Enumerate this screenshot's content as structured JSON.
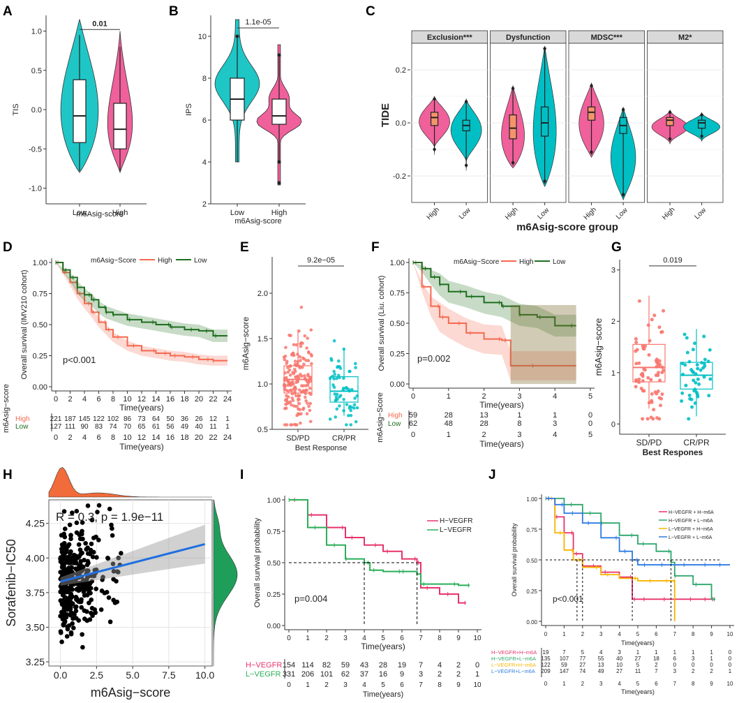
{
  "panels": {
    "A": {
      "letter": "A",
      "type": "violin",
      "ylabel": "TIS",
      "xlabel": "m6Asig-score",
      "categories": [
        "Low",
        "High"
      ],
      "yticks": [
        "1.0",
        "0.5",
        "0.0",
        "-0.5",
        "-1.0"
      ],
      "ylim": [
        -1.2,
        1.2
      ],
      "pvalue": "0.01",
      "groups": [
        {
          "name": "Low",
          "color": "#1FC6C6",
          "min": -0.78,
          "q1": -0.42,
          "median": -0.08,
          "q3": 0.38,
          "max": 0.95
        },
        {
          "name": "High",
          "color": "#F0609A",
          "min": -0.78,
          "q1": -0.5,
          "median": -0.25,
          "q3": 0.08,
          "max": 0.8
        }
      ]
    },
    "B": {
      "letter": "B",
      "type": "violin",
      "ylabel": "IPS",
      "xlabel": "m6Asig-score",
      "categories": [
        "Low",
        "High"
      ],
      "yticks": [
        "10",
        "8",
        "6",
        "4",
        "2"
      ],
      "ylim": [
        2,
        11
      ],
      "pvalue": "1.1e-05",
      "groups": [
        {
          "name": "Low",
          "color": "#1FC6C6",
          "min": 4,
          "q1": 6,
          "median": 7,
          "q3": 8,
          "max": 10
        },
        {
          "name": "High",
          "color": "#F0609A",
          "min": 4,
          "q1": 5.8,
          "median": 6.2,
          "q3": 7,
          "max": 9
        }
      ]
    },
    "C": {
      "letter": "C",
      "type": "violin-facet",
      "ylabel": "TIDE",
      "xlabel": "m6Asig-score group",
      "yticks": [
        "0.2",
        "0.0",
        "-0.2"
      ],
      "ylim": [
        -0.3,
        0.3
      ],
      "categories": [
        "High",
        "Low"
      ],
      "facets": [
        {
          "label": "Exclusion***",
          "high": {
            "median": 0.02,
            "q1": -0.01,
            "q3": 0.04
          },
          "low": {
            "median": -0.01,
            "q1": -0.03,
            "q3": 0.01
          }
        },
        {
          "label": "Dysfunction",
          "high": {
            "median": -0.02,
            "q1": -0.06,
            "q3": 0.03
          },
          "low": {
            "median": 0.0,
            "q1": -0.05,
            "q3": 0.06
          }
        },
        {
          "label": "MDSC***",
          "high": {
            "median": 0.04,
            "q1": 0.01,
            "q3": 0.06
          },
          "low": {
            "median": -0.01,
            "q1": -0.04,
            "q3": 0.02
          }
        },
        {
          "label": "M2*",
          "high": {
            "median": 0.01,
            "q1": -0.01,
            "q3": 0.02
          },
          "low": {
            "median": 0.0,
            "q1": -0.02,
            "q3": 0.01
          }
        }
      ]
    },
    "D": {
      "letter": "D",
      "type": "km",
      "ylabel": "Overall survival (IMV210 cohort)",
      "xlabel": "Time(years)",
      "legend_title": "m6Asig−Score",
      "legend": [
        "High",
        "Low"
      ],
      "pvalue": "p<0.001",
      "xticks": [
        "0",
        "2",
        "4",
        "6",
        "8",
        "10",
        "12",
        "14",
        "16",
        "18",
        "20",
        "22",
        "24"
      ],
      "yticks": [
        "1.00",
        "0.75",
        "0.50",
        "0.25",
        "0.00"
      ],
      "risk_title": "m6Asig−score",
      "risk_labels": [
        "High",
        "Low"
      ],
      "risk_high": [
        "221",
        "187",
        "145",
        "122",
        "102",
        "86",
        "73",
        "64",
        "50",
        "36",
        "26",
        "12",
        "1"
      ],
      "risk_low": [
        "127",
        "111",
        "90",
        "83",
        "74",
        "70",
        "65",
        "61",
        "56",
        "49",
        "40",
        "11",
        "1"
      ],
      "series": [
        {
          "name": "High",
          "x": [
            0,
            1,
            2,
            3,
            4,
            5,
            6,
            7,
            8,
            10,
            12,
            14,
            16,
            18,
            20,
            22,
            24
          ],
          "y": [
            1,
            0.92,
            0.84,
            0.75,
            0.67,
            0.6,
            0.52,
            0.46,
            0.4,
            0.33,
            0.29,
            0.27,
            0.25,
            0.24,
            0.22,
            0.21,
            0.21
          ]
        },
        {
          "name": "Low",
          "x": [
            0,
            1,
            2,
            3,
            4,
            5,
            6,
            7,
            8,
            10,
            12,
            14,
            16,
            18,
            20,
            22,
            24
          ],
          "y": [
            1,
            0.94,
            0.88,
            0.8,
            0.74,
            0.7,
            0.64,
            0.6,
            0.58,
            0.54,
            0.52,
            0.5,
            0.48,
            0.46,
            0.45,
            0.41,
            0.41
          ]
        }
      ]
    },
    "E": {
      "letter": "E",
      "type": "box",
      "ylabel": "m6Asig−score",
      "xlabel": "Best Response",
      "categories": [
        "SD/PD",
        "CR/PR"
      ],
      "yticks": [
        "2.0",
        "1.5",
        "1.0",
        "0.5"
      ],
      "ylim": [
        0.5,
        2.4
      ],
      "pvalue": "9.2e−05",
      "groups": [
        {
          "name": "SD/PD",
          "min": 0.72,
          "q1": 0.9,
          "median": 1.05,
          "q3": 1.2,
          "max": 1.6
        },
        {
          "name": "CR/PR",
          "min": 0.65,
          "q1": 0.8,
          "median": 0.92,
          "q3": 1.08,
          "max": 1.4
        }
      ]
    },
    "F": {
      "letter": "F",
      "type": "km",
      "ylabel": "Overall survival (Liu. cohort)",
      "xlabel": "Time(years)",
      "legend_title": "m6Asig−Score",
      "legend": [
        "High",
        "Low"
      ],
      "pvalue": "p=0.002",
      "xticks": [
        "0",
        "1",
        "2",
        "3",
        "4",
        "5"
      ],
      "yticks": [
        "1.00",
        "0.75",
        "0.50",
        "0.25",
        "0.00"
      ],
      "risk_title": "m6Asig−Score",
      "risk_labels": [
        "High",
        "Low"
      ],
      "risk_high": [
        "59",
        "28",
        "13",
        "1",
        "1",
        "0"
      ],
      "risk_low": [
        "62",
        "48",
        "28",
        "8",
        "3",
        "0"
      ],
      "series": [
        {
          "name": "High",
          "x": [
            0,
            0.25,
            0.5,
            0.75,
            1,
            1.5,
            2,
            2.5,
            2.75,
            4.6
          ],
          "y": [
            1,
            0.8,
            0.64,
            0.55,
            0.5,
            0.42,
            0.37,
            0.36,
            0.15,
            0.15
          ]
        },
        {
          "name": "Low",
          "x": [
            0,
            0.25,
            0.5,
            0.75,
            1,
            1.5,
            2,
            2.5,
            3,
            3.5,
            4,
            4.6
          ],
          "y": [
            1,
            0.95,
            0.88,
            0.82,
            0.76,
            0.72,
            0.67,
            0.64,
            0.57,
            0.55,
            0.48,
            0.48
          ]
        }
      ]
    },
    "G": {
      "letter": "G",
      "type": "box",
      "ylabel": "m6Asig−score",
      "xlabel": "Best Respones",
      "categories": [
        "SD/PD",
        "CR/PR"
      ],
      "yticks": [
        "3",
        "2",
        "1",
        "0"
      ],
      "ylim": [
        -0.2,
        3.2
      ],
      "pvalue": "0.019",
      "groups": [
        {
          "name": "SD/PD",
          "min": 0.3,
          "q1": 0.82,
          "median": 1.1,
          "q3": 1.55,
          "max": 2.5
        },
        {
          "name": "CR/PR",
          "min": 0.15,
          "q1": 0.68,
          "median": 0.95,
          "q3": 1.2,
          "max": 1.85
        }
      ]
    },
    "H": {
      "letter": "H",
      "type": "scatter",
      "ylabel": "Sorafenib−IC50",
      "xlabel": "m6Asig−score",
      "annotation": "R = 0.3, p = 1.9e−11",
      "xticks": [
        "0.0",
        "2.5",
        "5.0",
        "7.5",
        "10.0"
      ],
      "yticks": [
        "4.25",
        "4.00",
        "3.75",
        "3.50",
        "3.25"
      ],
      "xlim": [
        -0.8,
        10.5
      ],
      "ylim": [
        3.22,
        4.42
      ],
      "fit": {
        "x0": 0,
        "y0": 3.83,
        "x1": 10,
        "y1": 4.1
      }
    },
    "I": {
      "letter": "I",
      "type": "km",
      "ylabel": "Overall survival probability",
      "xlabel": "Time(years)",
      "legend": [
        "H−VEGFR",
        "L−VEGFR"
      ],
      "pvalue": "p=0.004",
      "xticks": [
        "0",
        "1",
        "2",
        "3",
        "4",
        "5",
        "6",
        "7",
        "8",
        "9",
        "10"
      ],
      "yticks": [
        "1.00",
        "0.75",
        "0.50",
        "0.25",
        "0.00"
      ],
      "risk_labels": [
        "H−VEGFR",
        "L−VEGFR"
      ],
      "risk_high": [
        "154",
        "114",
        "82",
        "59",
        "43",
        "28",
        "19",
        "7",
        "4",
        "2",
        "0"
      ],
      "risk_low": [
        "331",
        "206",
        "101",
        "62",
        "37",
        "16",
        "9",
        "3",
        "2",
        "2",
        "1"
      ],
      "series": [
        {
          "name": "H−VEGFR",
          "x": [
            0,
            1,
            2,
            3,
            4,
            5,
            6,
            6.8,
            7,
            8,
            9,
            9.4
          ],
          "y": [
            1,
            0.88,
            0.78,
            0.7,
            0.64,
            0.59,
            0.53,
            0.5,
            0.3,
            0.25,
            0.18,
            0.18
          ]
        },
        {
          "name": "L−VEGFR",
          "x": [
            0,
            1,
            2,
            3,
            4,
            4.3,
            5,
            6,
            6.8,
            7,
            8,
            9,
            9.6
          ],
          "y": [
            1,
            0.78,
            0.64,
            0.53,
            0.5,
            0.44,
            0.43,
            0.43,
            0.41,
            0.33,
            0.33,
            0.32,
            0.32
          ]
        }
      ]
    },
    "J": {
      "letter": "J",
      "type": "km",
      "ylabel": "Overall survival probability",
      "xlabel": "Time(years)",
      "legend": [
        "H−VEGFR + H−m6A",
        "H−VEGFR + L−m6A",
        "L−VEGFR + H−m6A",
        "L−VEGFR + L−m6A"
      ],
      "pvalue": "p<0.001",
      "xticks": [
        "0",
        "1",
        "2",
        "3",
        "4",
        "5",
        "6",
        "7",
        "8",
        "9",
        "10"
      ],
      "yticks": [
        "1.00",
        "0.75",
        "0.50",
        "0.25",
        "0.00"
      ],
      "risk_labels": [
        "H−VEGFR+H−m6A",
        "H−VEGFR+L−m6A",
        "L−VEGFR+H−m6A",
        "L−VEGFR+L−m6A"
      ],
      "risk_rows": [
        [
          "19",
          "7",
          "5",
          "4",
          "3",
          "1",
          "1",
          "1",
          "1",
          "1",
          "0"
        ],
        [
          "135",
          "107",
          "77",
          "55",
          "40",
          "27",
          "18",
          "6",
          "3",
          "1",
          "0"
        ],
        [
          "122",
          "59",
          "27",
          "13",
          "10",
          "5",
          "2",
          "0",
          "0",
          "0",
          "0"
        ],
        [
          "209",
          "147",
          "74",
          "49",
          "27",
          "11",
          "7",
          "3",
          "2",
          "2",
          "1"
        ]
      ],
      "series": [
        {
          "name": "H−VEGFR + H−m6A",
          "x": [
            0,
            0.5,
            1,
            1.5,
            2,
            3,
            4,
            4.7,
            5,
            6,
            7,
            8,
            9,
            9.2
          ],
          "y": [
            1,
            0.85,
            0.72,
            0.55,
            0.45,
            0.4,
            0.36,
            0.18,
            0.18,
            0.18,
            0.18,
            0.18,
            0.18,
            0.18
          ]
        },
        {
          "name": "H−VEGFR + L−m6A",
          "x": [
            0,
            1,
            2,
            3,
            4,
            5,
            6,
            6.8,
            7,
            8,
            9,
            9.2
          ],
          "y": [
            1,
            0.95,
            0.88,
            0.8,
            0.7,
            0.63,
            0.57,
            0.48,
            0.37,
            0.3,
            0.18,
            0.18
          ]
        },
        {
          "name": "L−VEGFR + H−m6A",
          "x": [
            0,
            0.5,
            1,
            1.5,
            2,
            3,
            4,
            5,
            6,
            6.9,
            7
          ],
          "y": [
            1,
            0.72,
            0.58,
            0.5,
            0.44,
            0.38,
            0.35,
            0.33,
            0.33,
            0.33,
            0.0
          ]
        },
        {
          "name": "L−VEGFR + L−m6A",
          "x": [
            0,
            0.5,
            1,
            2,
            3,
            4,
            4.7,
            5,
            6,
            7,
            8,
            9,
            10
          ],
          "y": [
            1,
            0.95,
            0.88,
            0.8,
            0.68,
            0.57,
            0.5,
            0.46,
            0.46,
            0.46,
            0.46,
            0.46,
            0.46
          ]
        }
      ]
    }
  },
  "colors": {
    "teal": "#1FC6C6",
    "pink": "#F0609A",
    "salmon": "#F8766D",
    "cyan": "#00BFC4",
    "high_km": "#F4694F",
    "low_km": "#1E6E1E",
    "vegfr_h": "#E8336A",
    "vegfr_l": "#2AAE57",
    "j_red": "#E8336A",
    "j_green": "#2BA66B",
    "j_yellow": "#F7B500",
    "j_blue": "#2E7BE4",
    "orange": "#F26B3A",
    "green_dens": "#1F9E5A",
    "fit_blue": "#1F6FE0"
  }
}
